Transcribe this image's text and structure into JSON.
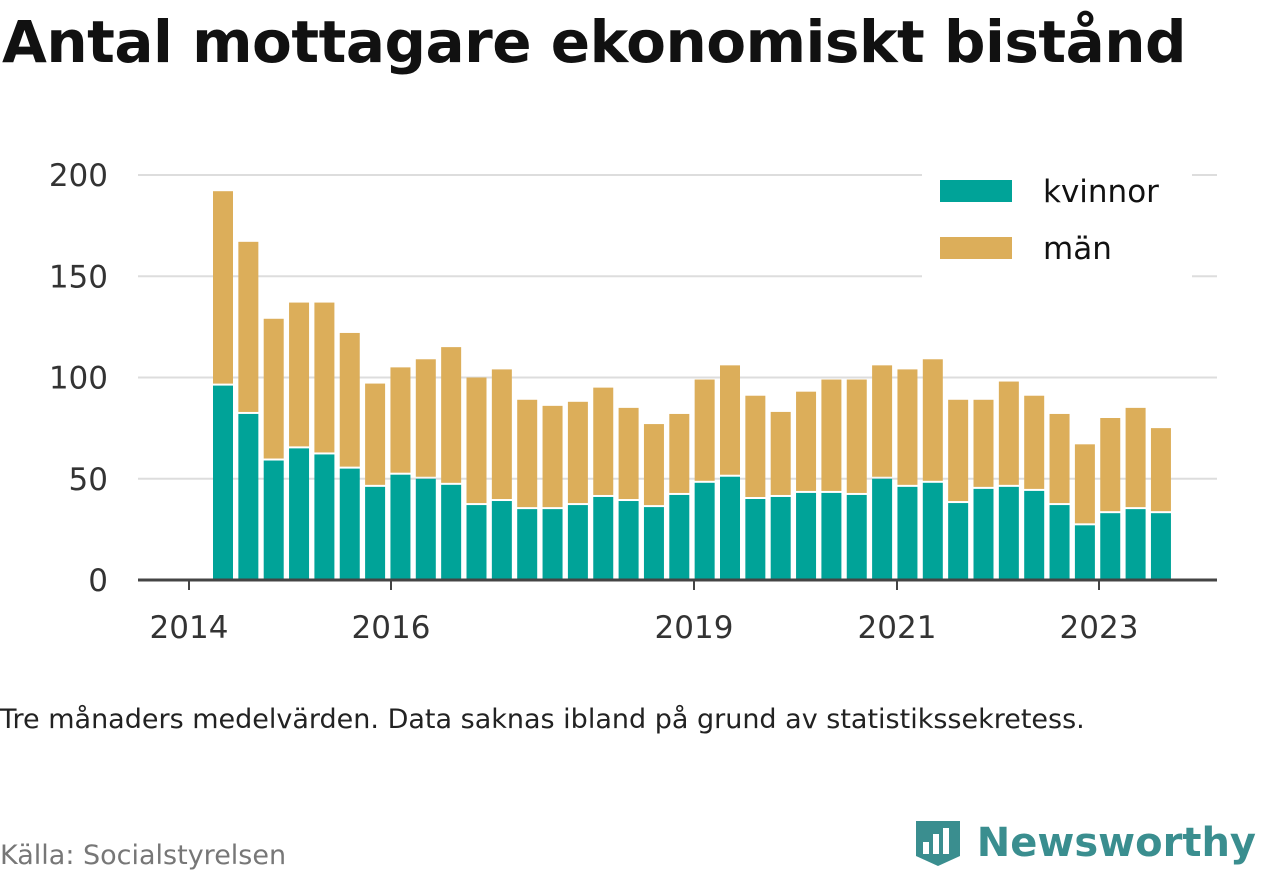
{
  "title": "Antal mottagare ekonomiskt bistånd",
  "note": "Tre månaders medelvärden. Data saknas ibland på grund av statistikssekretess.",
  "source": "Källa: Socialstyrelsen",
  "brand": "Newsworthy",
  "colors": {
    "kvinnor": "#00a398",
    "man": "#dcae5a",
    "grid": "#dddddd",
    "axis": "#444444",
    "brand": "#3a8e8f"
  },
  "chart_data": {
    "type": "bar",
    "stacked": true,
    "ylim": [
      0,
      200
    ],
    "yticks": [
      0,
      50,
      100,
      150,
      200
    ],
    "xticks": [
      "2014",
      "2016",
      "2019",
      "2021",
      "2023"
    ],
    "legend": {
      "position": "top-right"
    },
    "grid": true,
    "series": [
      {
        "name": "kvinnor",
        "values": [
          96,
          82,
          59,
          65,
          62,
          55,
          46,
          52,
          50,
          47,
          37,
          39,
          35,
          35,
          37,
          41,
          39,
          36,
          42,
          48,
          51,
          40,
          41,
          43,
          43,
          42,
          50,
          46,
          48,
          38,
          45,
          46,
          44,
          37,
          27,
          33,
          35,
          33
        ]
      },
      {
        "name": "män",
        "values": [
          96,
          85,
          70,
          72,
          75,
          67,
          51,
          53,
          59,
          68,
          63,
          65,
          54,
          51,
          51,
          54,
          46,
          41,
          40,
          51,
          55,
          51,
          42,
          50,
          56,
          57,
          56,
          58,
          61,
          51,
          44,
          52,
          47,
          45,
          40,
          47,
          50,
          42
        ]
      }
    ]
  }
}
